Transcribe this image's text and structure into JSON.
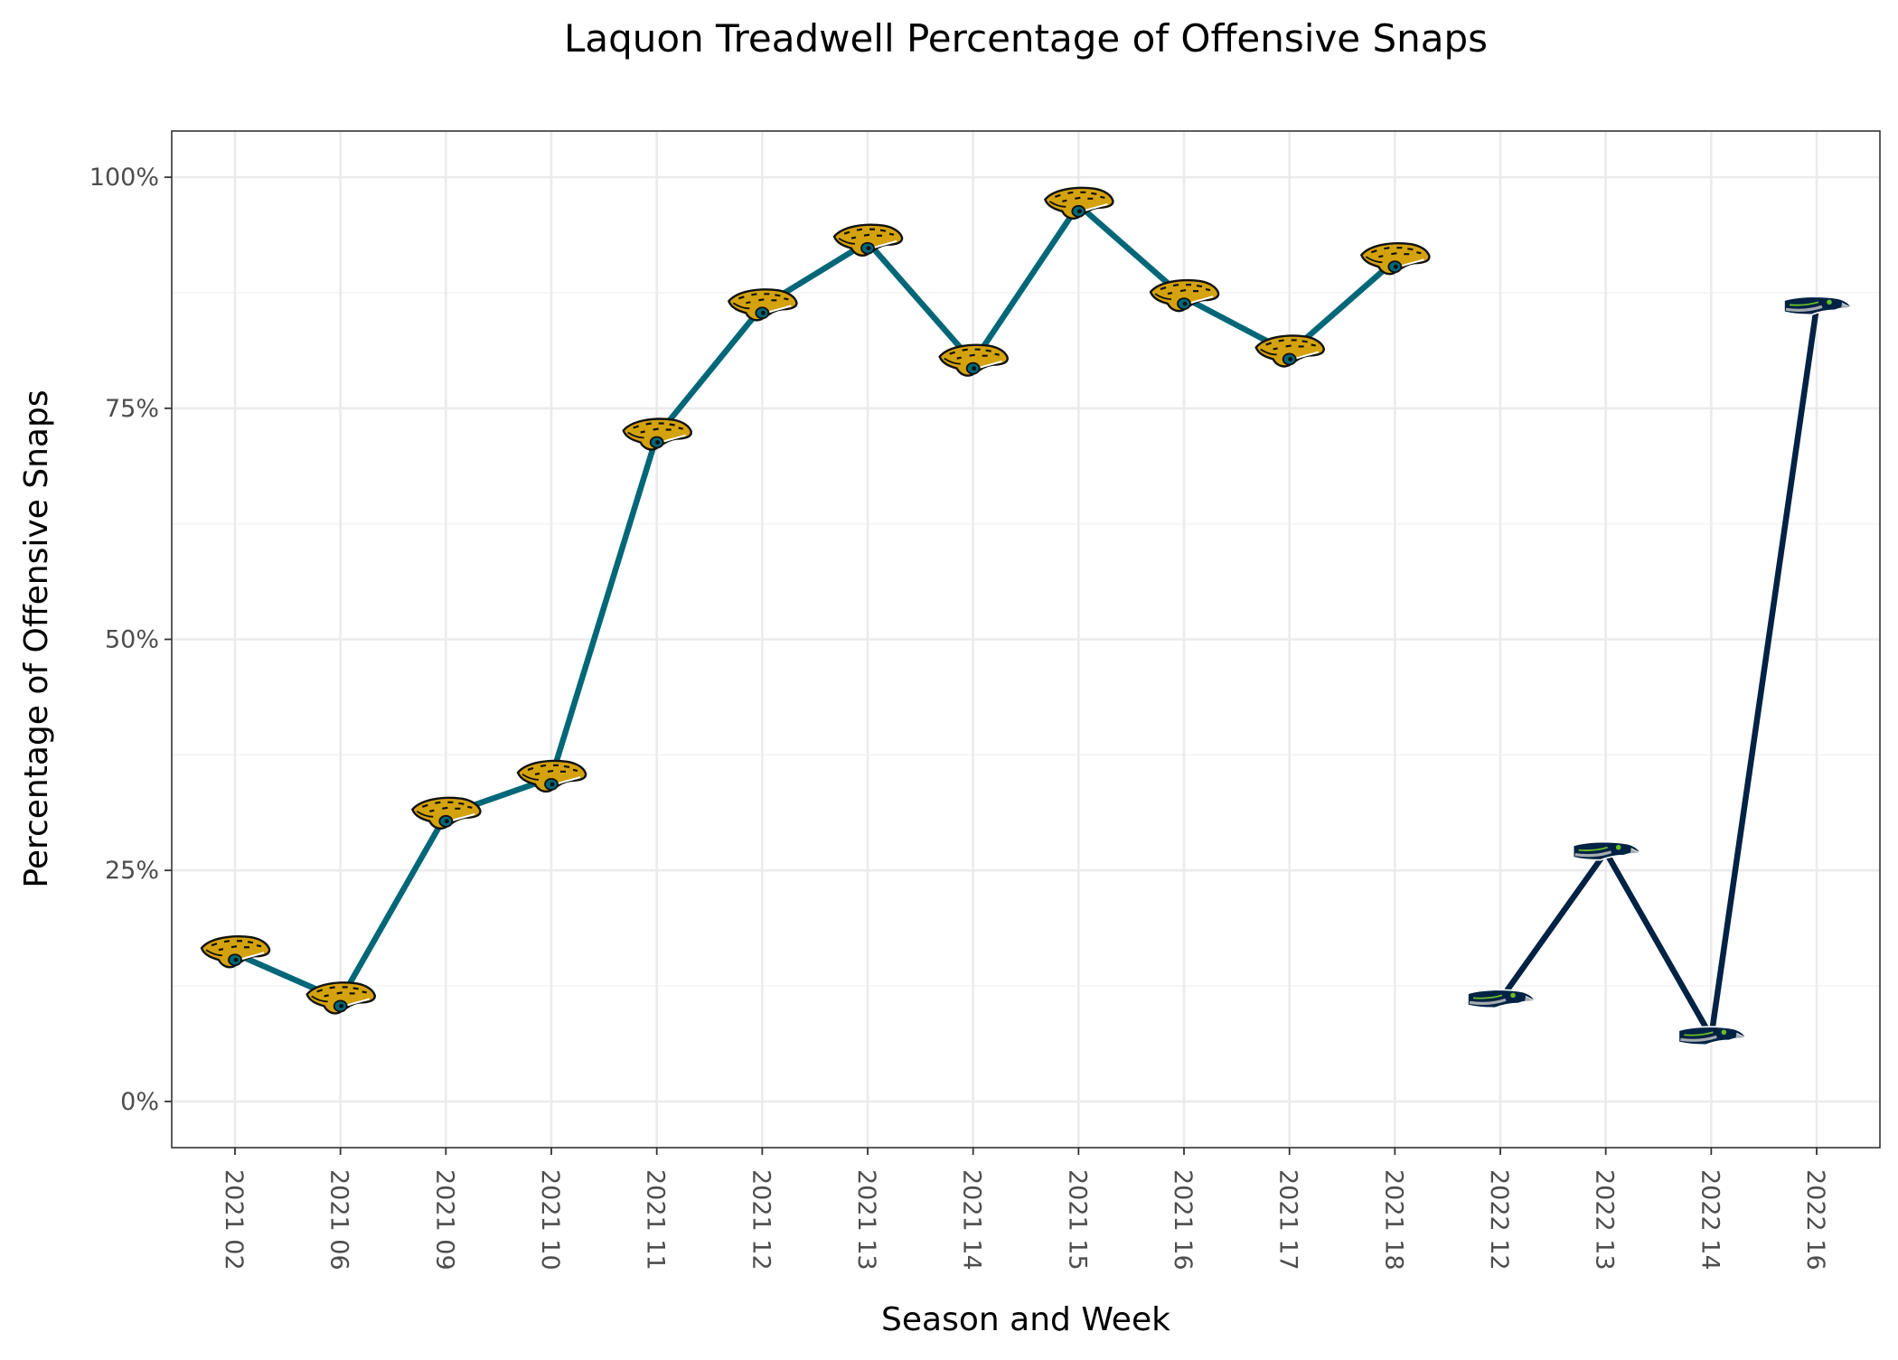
{
  "chart_data": {
    "type": "line",
    "title": "Laquon Treadwell Percentage of Offensive Snaps",
    "xlabel": "Season and Week",
    "ylabel": "Percentage of Offensive Snaps",
    "categories": [
      "2021 02",
      "2021 06",
      "2021 09",
      "2021 10",
      "2021 11",
      "2021 12",
      "2021 13",
      "2021 14",
      "2021 15",
      "2021 16",
      "2021 17",
      "2021 18",
      "2022 12",
      "2022 13",
      "2022 14",
      "2022 16"
    ],
    "y_ticks": [
      0,
      25,
      50,
      75,
      100
    ],
    "y_tick_labels": [
      "0%",
      "25%",
      "50%",
      "75%",
      "100%"
    ],
    "ylim": [
      -5,
      105
    ],
    "grid": true,
    "legend": "none",
    "series": [
      {
        "team_icon": "jaguars-logo-icon",
        "color": "#006778",
        "points": [
          {
            "x": "2021 02",
            "y": 16
          },
          {
            "x": "2021 06",
            "y": 11
          },
          {
            "x": "2021 09",
            "y": 31
          },
          {
            "x": "2021 10",
            "y": 35
          },
          {
            "x": "2021 11",
            "y": 72
          },
          {
            "x": "2021 12",
            "y": 86
          },
          {
            "x": "2021 13",
            "y": 93
          },
          {
            "x": "2021 14",
            "y": 80
          },
          {
            "x": "2021 15",
            "y": 97
          },
          {
            "x": "2021 16",
            "y": 87
          },
          {
            "x": "2021 17",
            "y": 81
          },
          {
            "x": "2021 18",
            "y": 91
          }
        ]
      },
      {
        "team_icon": "seahawks-logo-icon",
        "color": "#002244",
        "points": [
          {
            "x": "2022 12",
            "y": 11
          },
          {
            "x": "2022 13",
            "y": 27
          },
          {
            "x": "2022 14",
            "y": 7
          },
          {
            "x": "2022 16",
            "y": 86
          }
        ]
      }
    ]
  }
}
